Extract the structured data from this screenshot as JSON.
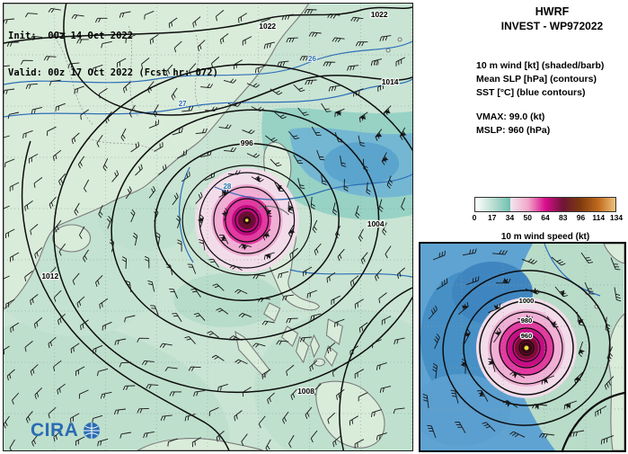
{
  "header": {
    "model": "HWRF",
    "storm": "INVEST - WP972022"
  },
  "map": {
    "init_line": "Init:  00z 14 Oct 2022",
    "valid_line": "Valid: 00z 17 Oct 2022 (Fcst hr: 072)",
    "logo_text": "CIRA",
    "slp_labels": [
      "1022",
      "1022",
      "1014",
      "1012",
      "996",
      "1004",
      "1008"
    ],
    "sst_labels": [
      "26",
      "27",
      "28"
    ]
  },
  "legend": {
    "line1": "10 m wind [kt] (shaded/barb)",
    "line2": "Mean SLP [hPa] (contours)",
    "line3": "SST [°C] (blue contours)"
  },
  "stats": {
    "vmax": "VMAX:  99.0 (kt)",
    "mslp": "MSLP:  960 (hPa)"
  },
  "colorbar": {
    "label": "10 m wind speed (kt)",
    "ticks": [
      "0",
      "17",
      "34",
      "50",
      "64",
      "83",
      "96",
      "114",
      "134"
    ],
    "segments": [
      [
        "#ffffff",
        "#b9ded2"
      ],
      [
        "#b9ded2",
        "#6fc0b0"
      ],
      [
        "#f2e7ee",
        "#f2a6c9"
      ],
      [
        "#f2a6c9",
        "#d90d8e"
      ],
      [
        "#d90d8e",
        "#6e1535"
      ],
      [
        "#6e1535",
        "#7e3a0e"
      ],
      [
        "#7e3a0e",
        "#c06a1e"
      ],
      [
        "#c06a1e",
        "#eec27c"
      ]
    ]
  },
  "inset": {
    "slp_labels": [
      "960",
      "980",
      "1000"
    ]
  },
  "chart_data": {
    "type": "heatmap",
    "title": "HWRF INVEST - WP972022: 10 m wind (kt, shaded/barb), Mean SLP (hPa, contours), SST (°C, blue contours)",
    "init": "00z 14 Oct 2022",
    "valid": "00z 17 Oct 2022",
    "forecast_hour": 72,
    "vmax_kt": 99.0,
    "mslp_hpa": 960,
    "colorbar": {
      "label": "10 m wind speed (kt)",
      "ticks": [
        0,
        17,
        34,
        50,
        64,
        83,
        96,
        114,
        134
      ]
    },
    "slp_contour_labels_hpa": [
      1022,
      1014,
      1012,
      1008,
      1004,
      996,
      980,
      960
    ],
    "sst_contour_labels_c": [
      26,
      27,
      28
    ],
    "legend_position": "right"
  }
}
